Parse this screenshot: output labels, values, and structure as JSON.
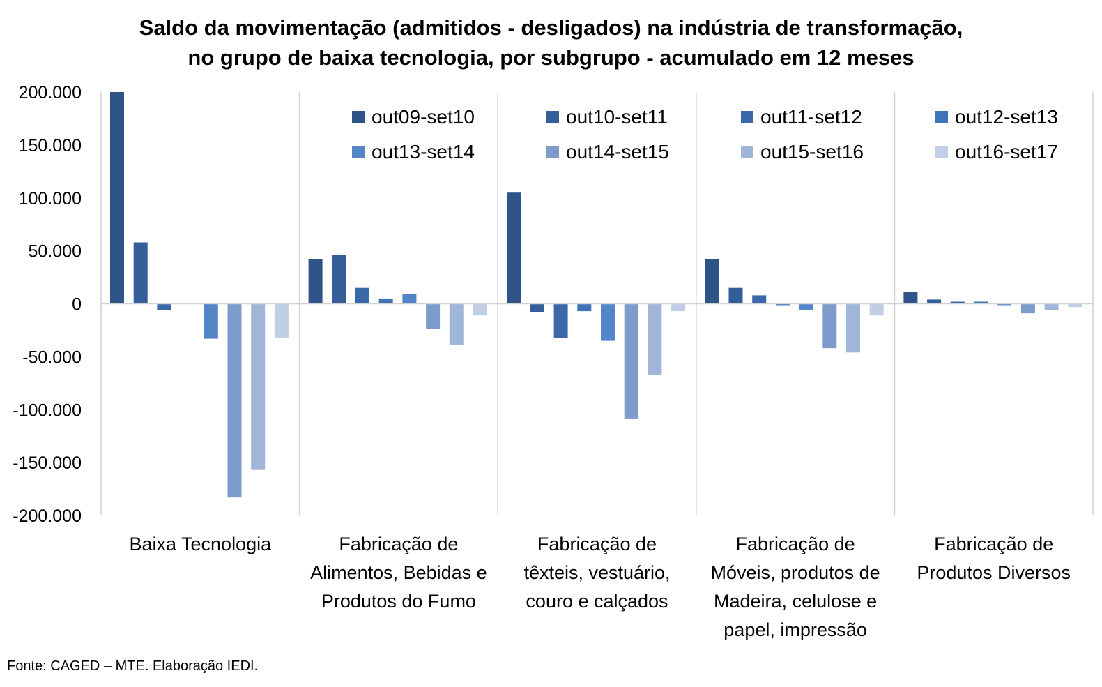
{
  "chart_data": {
    "type": "bar",
    "title_lines": [
      "Saldo da movimentação (admitidos - desligados) na indústria de transformação,",
      "no grupo de baixa tecnologia, por subgrupo - acumulado em 12 meses"
    ],
    "categories": [
      [
        "Baixa Tecnologia"
      ],
      [
        "Fabricação de",
        "Alimentos, Bebidas e",
        "Produtos do Fumo"
      ],
      [
        "Fabricação de",
        "têxteis, vestuário,",
        "couro e calçados"
      ],
      [
        "Fabricação de",
        "Móveis, produtos de",
        "Madeira, celulose e",
        "papel, impressão"
      ],
      [
        "Fabricação de",
        "Produtos Diversos"
      ]
    ],
    "series": [
      {
        "name": "out09-set10",
        "color": "#2e5487",
        "values": [
          200000,
          42000,
          105000,
          42000,
          11000
        ]
      },
      {
        "name": "out10-set11",
        "color": "#345e98",
        "values": [
          58000,
          46000,
          -8000,
          15000,
          4000
        ]
      },
      {
        "name": "out11-set12",
        "color": "#3b68a8",
        "values": [
          -6000,
          15000,
          -32000,
          8000,
          2000
        ]
      },
      {
        "name": "out12-set13",
        "color": "#4173b9",
        "values": [
          0,
          5000,
          -7000,
          -2000,
          2000
        ]
      },
      {
        "name": "out13-set14",
        "color": "#5485c7",
        "values": [
          -33000,
          9000,
          -35000,
          -6000,
          -2000
        ]
      },
      {
        "name": "out14-set15",
        "color": "#7d9ccc",
        "values": [
          -183000,
          -24000,
          -109000,
          -42000,
          -9000
        ]
      },
      {
        "name": "out15-set16",
        "color": "#a1b5d9",
        "values": [
          -157000,
          -39000,
          -67000,
          -46000,
          -6000
        ]
      },
      {
        "name": "out16-set17",
        "color": "#c0cfe6",
        "values": [
          -32000,
          -11000,
          -7000,
          -11000,
          -3000
        ]
      }
    ],
    "yticks": [
      "200.000",
      "150.000",
      "100.000",
      "50.000",
      "0",
      "-50.000",
      "-100.000",
      "-150.000",
      "-200.000"
    ],
    "ylim": [
      -200000,
      200000
    ],
    "legend_position": "top-right",
    "grid": false,
    "source": "Fonte: CAGED – MTE. Elaboração IEDI."
  }
}
